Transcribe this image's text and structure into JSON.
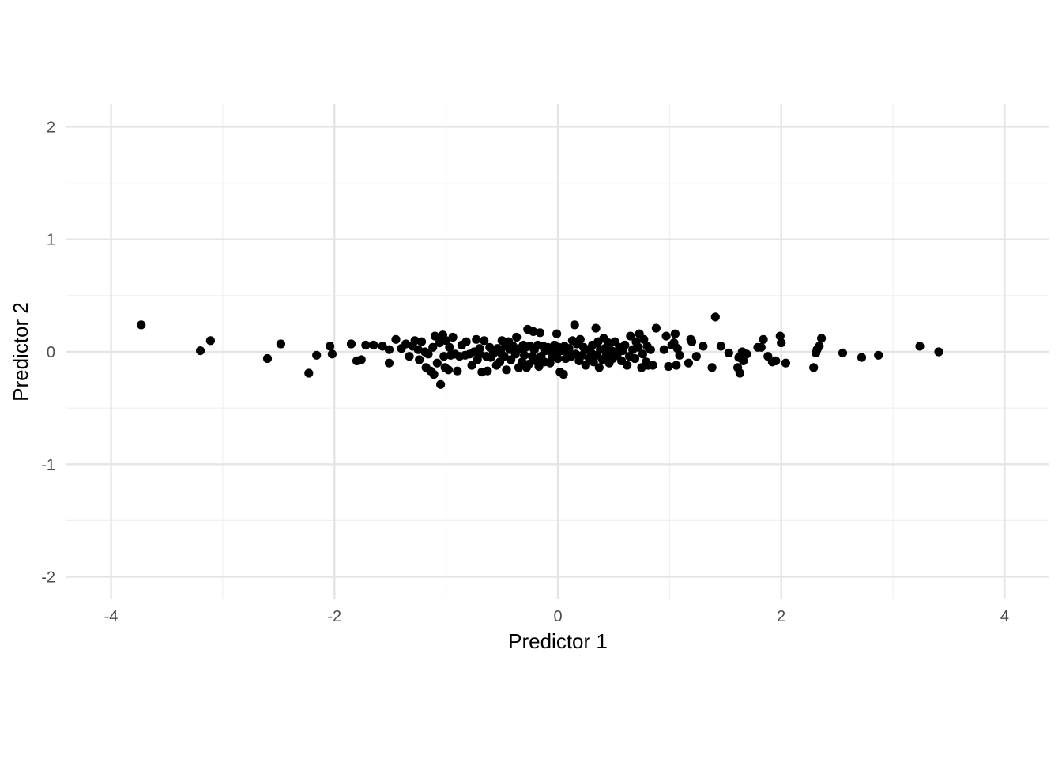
{
  "chart_data": {
    "type": "scatter",
    "title": "",
    "xlabel": "Predictor 1",
    "ylabel": "Predictor 2",
    "xlim": [
      -4.4,
      4.4
    ],
    "ylim": [
      -2.2,
      2.2
    ],
    "x_ticks": [
      -4,
      -2,
      0,
      2,
      4
    ],
    "x_tick_labels": [
      "-4",
      "-2",
      "0",
      "2",
      "4"
    ],
    "y_ticks": [
      -2,
      -1,
      0,
      1,
      2
    ],
    "y_tick_labels": [
      "-2",
      "-1",
      "0",
      "1",
      "2"
    ],
    "grid": true,
    "legend": "none",
    "colors": {
      "points": "#000000",
      "grid_major": "#e5e5e5",
      "grid_minor": "#f0f0f0",
      "tick_text": "#4d4d4d"
    },
    "points": [
      [
        -3.73,
        0.24
      ],
      [
        -3.2,
        0.01
      ],
      [
        -3.11,
        0.1
      ],
      [
        -2.6,
        -0.06
      ],
      [
        -2.48,
        0.07
      ],
      [
        -2.23,
        -0.19
      ],
      [
        -2.16,
        -0.03
      ],
      [
        -2.04,
        0.05
      ],
      [
        -2.02,
        -0.02
      ],
      [
        -1.85,
        0.07
      ],
      [
        -1.8,
        -0.08
      ],
      [
        -1.76,
        -0.07
      ],
      [
        -1.72,
        0.06
      ],
      [
        -1.65,
        0.06
      ],
      [
        -1.57,
        0.05
      ],
      [
        -1.51,
        0.02
      ],
      [
        -1.51,
        -0.1
      ],
      [
        -1.45,
        0.11
      ],
      [
        -1.4,
        0.03
      ],
      [
        -1.36,
        0.07
      ],
      [
        -1.33,
        -0.04
      ],
      [
        -1.3,
        0.05
      ],
      [
        -1.28,
        0.1
      ],
      [
        -1.25,
        0.02
      ],
      [
        -1.24,
        -0.07
      ],
      [
        -1.22,
        0.09
      ],
      [
        -1.19,
        0.0
      ],
      [
        -1.18,
        -0.14
      ],
      [
        -1.16,
        -0.02
      ],
      [
        -1.14,
        -0.17
      ],
      [
        -1.12,
        0.04
      ],
      [
        -1.11,
        -0.2
      ],
      [
        -1.1,
        0.14
      ],
      [
        -1.08,
        -0.1
      ],
      [
        -1.06,
        0.08
      ],
      [
        -1.05,
        -0.29
      ],
      [
        -1.03,
        0.15
      ],
      [
        -1.02,
        -0.04
      ],
      [
        -1.01,
        -0.14
      ],
      [
        -1.0,
        0.1
      ],
      [
        -0.98,
        -0.16
      ],
      [
        -0.97,
        0.04
      ],
      [
        -0.96,
        -0.03
      ],
      [
        -0.94,
        0.13
      ],
      [
        -0.92,
        -0.02
      ],
      [
        -0.9,
        -0.17
      ],
      [
        -0.88,
        -0.04
      ],
      [
        -0.86,
        0.06
      ],
      [
        -0.83,
        -0.03
      ],
      [
        -0.82,
        0.09
      ],
      [
        -0.79,
        -0.02
      ],
      [
        -0.77,
        -0.12
      ],
      [
        -0.75,
        0.0
      ],
      [
        -0.73,
        0.11
      ],
      [
        -0.72,
        -0.07
      ],
      [
        -0.7,
        -0.02
      ],
      [
        -0.7,
        0.03
      ],
      [
        -0.68,
        -0.18
      ],
      [
        -0.66,
        0.1
      ],
      [
        -0.64,
        -0.04
      ],
      [
        -0.63,
        -0.17
      ],
      [
        -0.61,
        0.04
      ],
      [
        -0.6,
        -0.05
      ],
      [
        -0.58,
        -0.02
      ],
      [
        -0.57,
        0.01
      ],
      [
        -0.55,
        -0.12
      ],
      [
        -0.54,
        0.03
      ],
      [
        -0.52,
        -0.09
      ],
      [
        -0.51,
        -0.01
      ],
      [
        -0.5,
        0.1
      ],
      [
        -0.48,
        -0.04
      ],
      [
        -0.47,
        0.05
      ],
      [
        -0.46,
        -0.16
      ],
      [
        -0.44,
        0.09
      ],
      [
        -0.43,
        0.02
      ],
      [
        -0.42,
        -0.07
      ],
      [
        -0.4,
        0.05
      ],
      [
        -0.38,
        -0.02
      ],
      [
        -0.37,
        0.13
      ],
      [
        -0.35,
        -0.14
      ],
      [
        -0.34,
        0.03
      ],
      [
        -0.32,
        -0.09
      ],
      [
        -0.31,
        0.06
      ],
      [
        -0.3,
        -0.03
      ],
      [
        -0.29,
        0.04
      ],
      [
        -0.28,
        -0.14
      ],
      [
        -0.27,
        0.2
      ],
      [
        -0.26,
        -0.11
      ],
      [
        -0.25,
        0.05
      ],
      [
        -0.23,
        -0.04
      ],
      [
        -0.22,
        0.18
      ],
      [
        -0.21,
        0.02
      ],
      [
        -0.2,
        -0.08
      ],
      [
        -0.18,
        0.06
      ],
      [
        -0.17,
        -0.13
      ],
      [
        -0.16,
        0.17
      ],
      [
        -0.15,
        -0.04
      ],
      [
        -0.13,
        0.05
      ],
      [
        -0.12,
        -0.09
      ],
      [
        -0.11,
        0.01
      ],
      [
        -0.09,
        0.04
      ],
      [
        -0.07,
        -0.1
      ],
      [
        -0.06,
        0.02
      ],
      [
        -0.05,
        -0.04
      ],
      [
        -0.03,
        0.06
      ],
      [
        -0.02,
        -0.02
      ],
      [
        -0.01,
        0.16
      ],
      [
        0.0,
        -0.06
      ],
      [
        0.01,
        0.04
      ],
      [
        0.02,
        -0.18
      ],
      [
        0.03,
        0.01
      ],
      [
        0.05,
        -0.2
      ],
      [
        0.06,
        0.05
      ],
      [
        0.07,
        -0.06
      ],
      [
        0.09,
        -0.01
      ],
      [
        0.1,
        0.03
      ],
      [
        0.12,
        -0.04
      ],
      [
        0.13,
        0.1
      ],
      [
        0.15,
        0.24
      ],
      [
        0.16,
        -0.02
      ],
      [
        0.17,
        0.07
      ],
      [
        0.19,
        -0.08
      ],
      [
        0.2,
        0.11
      ],
      [
        0.22,
        -0.03
      ],
      [
        0.23,
        0.04
      ],
      [
        0.25,
        -0.12
      ],
      [
        0.27,
        0.02
      ],
      [
        0.28,
        -0.06
      ],
      [
        0.3,
        -0.01
      ],
      [
        0.31,
        0.06
      ],
      [
        0.32,
        -0.09
      ],
      [
        0.34,
        0.21
      ],
      [
        0.35,
        -0.03
      ],
      [
        0.36,
        0.09
      ],
      [
        0.37,
        -0.14
      ],
      [
        0.38,
        0.02
      ],
      [
        0.4,
        -0.07
      ],
      [
        0.41,
        0.12
      ],
      [
        0.42,
        0.03
      ],
      [
        0.43,
        -0.04
      ],
      [
        0.45,
        0.08
      ],
      [
        0.46,
        -0.1
      ],
      [
        0.48,
        0.01
      ],
      [
        0.49,
        -0.06
      ],
      [
        0.51,
        0.09
      ],
      [
        0.53,
        -0.03
      ],
      [
        0.55,
        0.04
      ],
      [
        0.57,
        -0.08
      ],
      [
        0.58,
        0.01
      ],
      [
        0.6,
        0.06
      ],
      [
        0.62,
        -0.12
      ],
      [
        0.64,
        -0.04
      ],
      [
        0.65,
        0.14
      ],
      [
        0.67,
        0.02
      ],
      [
        0.69,
        -0.06
      ],
      [
        0.7,
        0.09
      ],
      [
        0.72,
        0.04
      ],
      [
        0.73,
        0.16
      ],
      [
        0.75,
        -0.14
      ],
      [
        0.76,
        -0.02
      ],
      [
        0.77,
        0.11
      ],
      [
        0.79,
        -0.09
      ],
      [
        0.8,
        0.05
      ],
      [
        0.81,
        -0.12
      ],
      [
        0.83,
        0.02
      ],
      [
        0.85,
        -0.12
      ],
      [
        0.88,
        0.21
      ],
      [
        0.95,
        0.02
      ],
      [
        0.97,
        0.14
      ],
      [
        0.99,
        -0.13
      ],
      [
        1.02,
        0.06
      ],
      [
        1.04,
        0.08
      ],
      [
        1.05,
        0.16
      ],
      [
        1.06,
        -0.12
      ],
      [
        1.07,
        0.03
      ],
      [
        1.09,
        -0.03
      ],
      [
        1.17,
        -0.1
      ],
      [
        1.19,
        0.11
      ],
      [
        1.2,
        0.09
      ],
      [
        1.24,
        -0.04
      ],
      [
        1.3,
        0.05
      ],
      [
        1.38,
        -0.14
      ],
      [
        1.41,
        0.31
      ],
      [
        1.46,
        0.05
      ],
      [
        1.53,
        -0.01
      ],
      [
        1.61,
        -0.14
      ],
      [
        1.62,
        -0.05
      ],
      [
        1.63,
        -0.19
      ],
      [
        1.65,
        0.0
      ],
      [
        1.66,
        -0.08
      ],
      [
        1.67,
        -0.03
      ],
      [
        1.69,
        -0.02
      ],
      [
        1.79,
        0.04
      ],
      [
        1.82,
        0.04
      ],
      [
        1.84,
        0.11
      ],
      [
        1.88,
        -0.04
      ],
      [
        1.92,
        -0.09
      ],
      [
        1.95,
        -0.08
      ],
      [
        1.99,
        0.14
      ],
      [
        2.0,
        0.08
      ],
      [
        2.04,
        -0.1
      ],
      [
        2.29,
        -0.14
      ],
      [
        2.31,
        -0.01
      ],
      [
        2.32,
        0.02
      ],
      [
        2.34,
        0.05
      ],
      [
        2.36,
        0.12
      ],
      [
        2.55,
        -0.01
      ],
      [
        2.72,
        -0.05
      ],
      [
        2.87,
        -0.03
      ],
      [
        3.24,
        0.05
      ],
      [
        3.41,
        0.0
      ]
    ]
  }
}
